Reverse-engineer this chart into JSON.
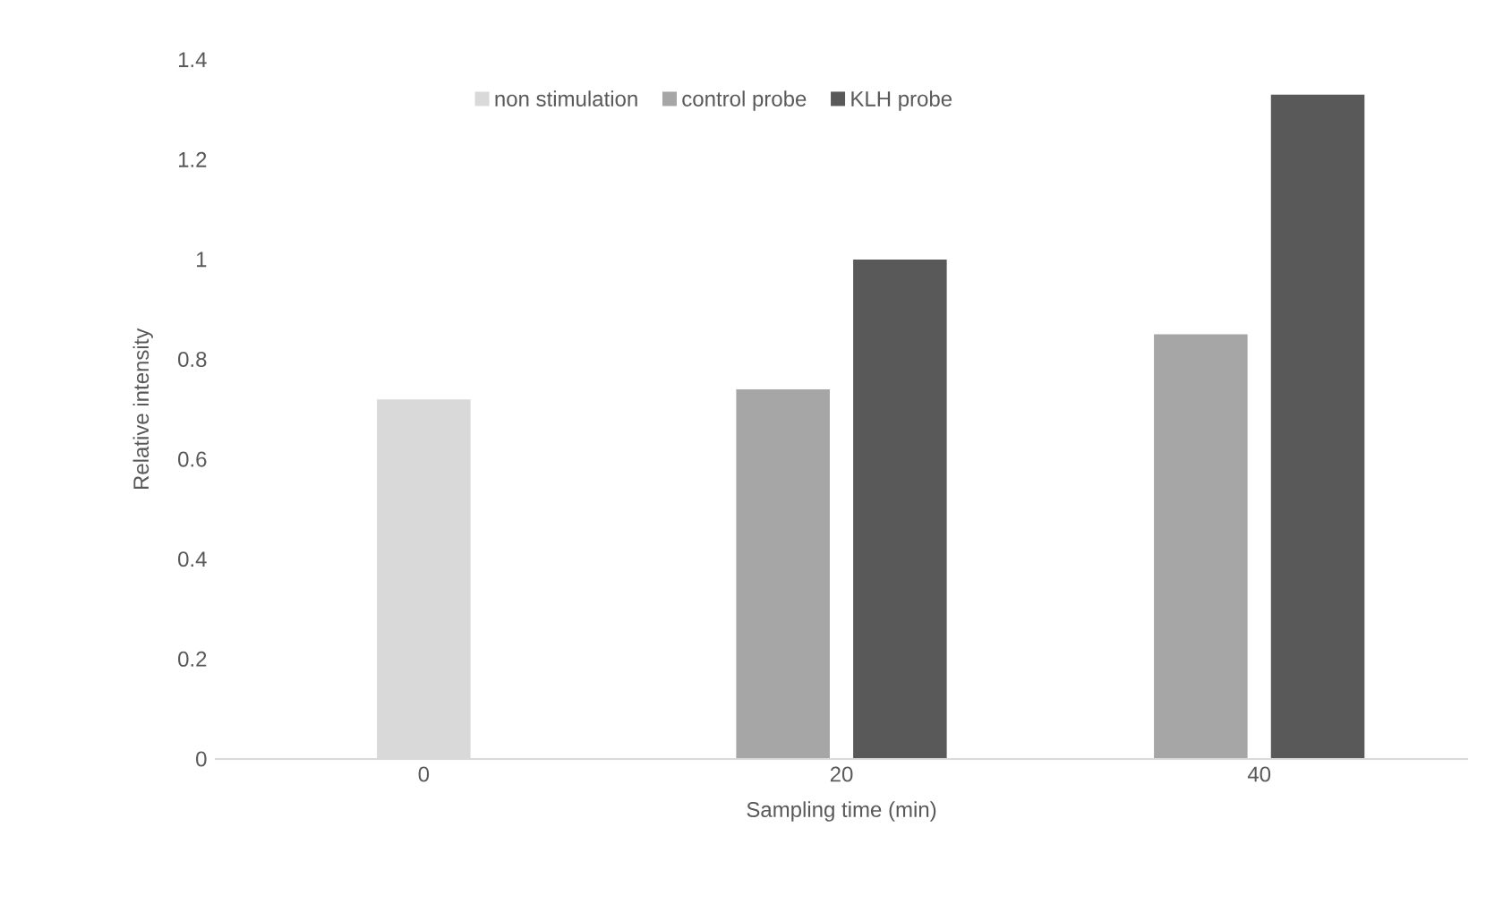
{
  "chart_data": {
    "type": "bar",
    "xlabel": "Sampling time (min)",
    "ylabel": "Relative intensity",
    "categories": [
      "0",
      "20",
      "40"
    ],
    "series": [
      {
        "name": "non stimulation",
        "color": "#d9d9d9",
        "values": [
          0.72,
          null,
          null
        ]
      },
      {
        "name": "control probe",
        "color": "#a6a6a6",
        "values": [
          null,
          0.74,
          0.85
        ]
      },
      {
        "name": "KLH probe",
        "color": "#595959",
        "values": [
          null,
          1.0,
          1.33
        ]
      }
    ],
    "ylim": [
      0,
      1.4
    ],
    "yticks": [
      0,
      0.2,
      0.4,
      0.6,
      0.8,
      1,
      1.2,
      1.4
    ],
    "grid": false,
    "legend": "top"
  }
}
